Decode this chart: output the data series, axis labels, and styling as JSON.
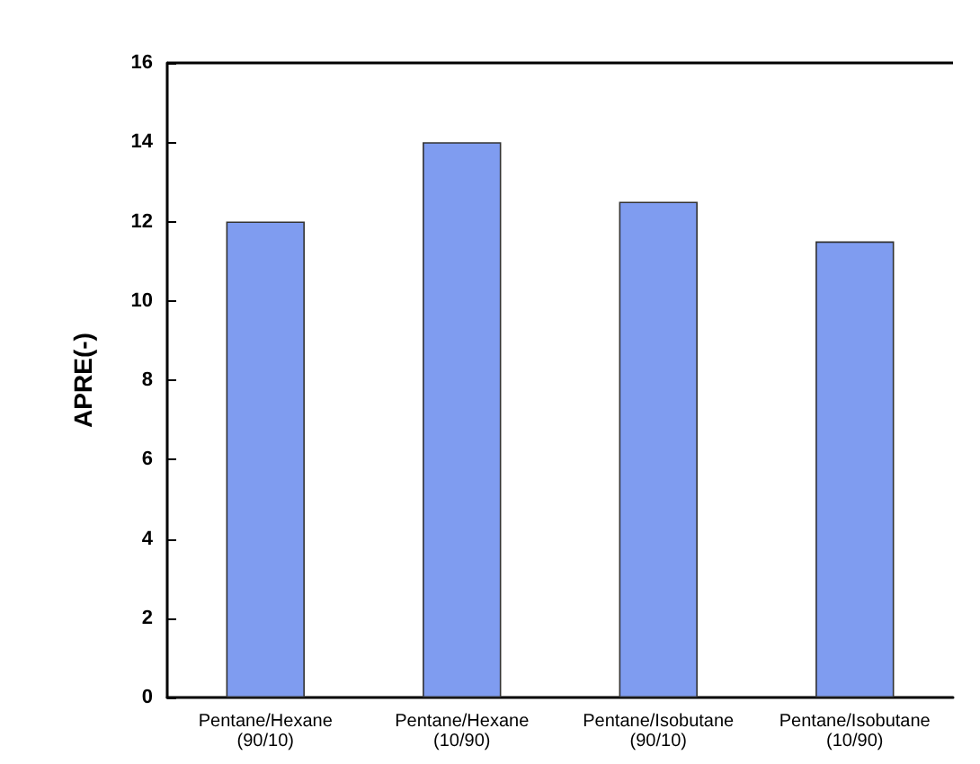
{
  "chart_data": {
    "type": "bar",
    "ylabel": "APRE(-)",
    "categories": [
      "Pentane/Hexane (90/10)",
      "Pentane/Hexane (10/90)",
      "Pentane/Isobutane (90/10)",
      "Pentane/Isobutane (10/90)"
    ],
    "values": [
      12,
      14,
      12.5,
      11.5
    ],
    "color": "#7f9cf0",
    "ylim": [
      0,
      16
    ],
    "yticks": [
      0,
      2,
      4,
      6,
      8,
      10,
      12,
      14,
      16
    ],
    "grid": false
  }
}
